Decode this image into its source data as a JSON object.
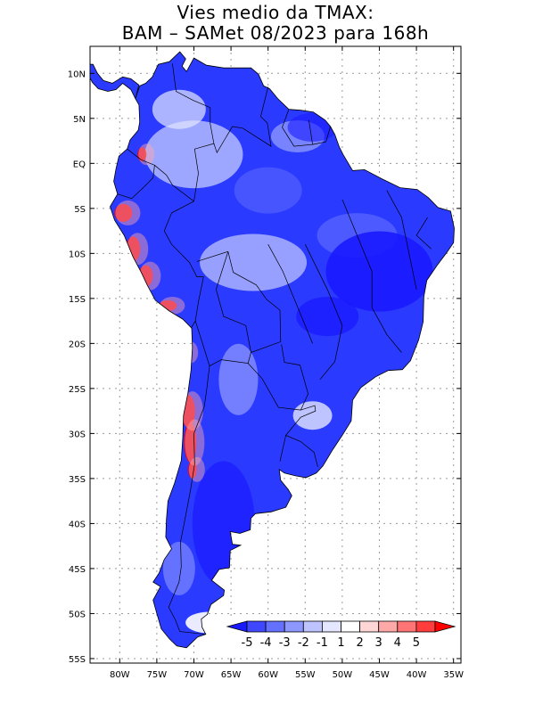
{
  "title": {
    "line1": "Vies medio da TMAX:",
    "line2": "BAM – SAMet 08/2023  para 168h"
  },
  "axes": {
    "lat_labels": [
      "10N",
      "5N",
      "EQ",
      "5S",
      "10S",
      "15S",
      "20S",
      "25S",
      "30S",
      "35S",
      "40S",
      "45S",
      "50S",
      "55S"
    ],
    "lat_values": [
      10,
      5,
      0,
      -5,
      -10,
      -15,
      -20,
      -25,
      -30,
      -35,
      -40,
      -45,
      -50,
      -55
    ],
    "lon_labels": [
      "80W",
      "75W",
      "70W",
      "65W",
      "60W",
      "55W",
      "50W",
      "45W",
      "40W",
      "35W"
    ],
    "lon_values": [
      -80,
      -75,
      -70,
      -65,
      -60,
      -55,
      -50,
      -45,
      -40,
      -35
    ],
    "lat_range": [
      -55.5,
      13
    ],
    "lon_range": [
      -84,
      -34
    ],
    "grid": "dotted"
  },
  "colorbar": {
    "labels": [
      "-5",
      "-4",
      "-3",
      "-2",
      "-1",
      "1",
      "2",
      "3",
      "4",
      "5"
    ],
    "colors": [
      "#1a1aff",
      "#3f48ff",
      "#6470ff",
      "#8c97ff",
      "#bcc3ff",
      "#e4e7ff",
      "#ffffff",
      "#ffd6d6",
      "#ffa8a8",
      "#ff7575",
      "#ff3d3d",
      "#ff0000"
    ],
    "position": "bottom-right, inside map"
  },
  "colors": {
    "land_base": "#2a3aff",
    "ocean": "#ffffff",
    "border": "#000000"
  }
}
